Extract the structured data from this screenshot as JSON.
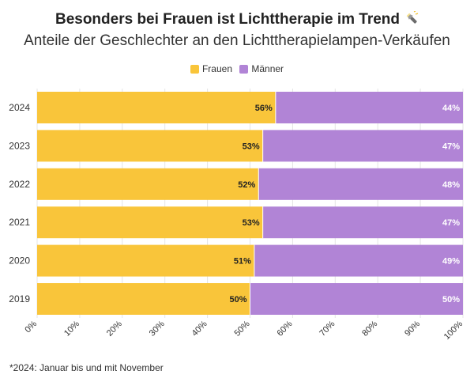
{
  "header": {
    "title": "Besonders bei Frauen ist Lichttherapie im Trend",
    "title_icon": "flashlight-icon",
    "subtitle": "Anteile der Geschlechter an den Lichttherapielampen-Verkäufen"
  },
  "legend": [
    {
      "label": "Frauen",
      "color": "#F9C53A"
    },
    {
      "label": "Männer",
      "color": "#B184D6"
    }
  ],
  "footnote": "*2024: Januar bis und mit November",
  "chart_data": {
    "type": "bar",
    "orientation": "horizontal",
    "stacked": true,
    "categories": [
      "2024",
      "2023",
      "2022",
      "2021",
      "2020",
      "2019"
    ],
    "series": [
      {
        "name": "Frauen",
        "color": "#F9C53A",
        "values": [
          56,
          53,
          52,
          53,
          51,
          50
        ],
        "labels": [
          "56%",
          "53%",
          "52%",
          "53%",
          "51%",
          "50%"
        ]
      },
      {
        "name": "Männer",
        "color": "#B184D6",
        "values": [
          44,
          47,
          48,
          47,
          49,
          50
        ],
        "labels": [
          "44%",
          "47%",
          "48%",
          "47%",
          "49%",
          "50%"
        ]
      }
    ],
    "xlim": [
      0,
      100
    ],
    "xticks": [
      0,
      10,
      20,
      30,
      40,
      50,
      60,
      70,
      80,
      90,
      100
    ],
    "xtick_labels": [
      "0%",
      "10%",
      "20%",
      "30%",
      "40%",
      "50%",
      "60%",
      "70%",
      "80%",
      "90%",
      "100%"
    ],
    "grid": true,
    "legend_position": "top-center"
  }
}
